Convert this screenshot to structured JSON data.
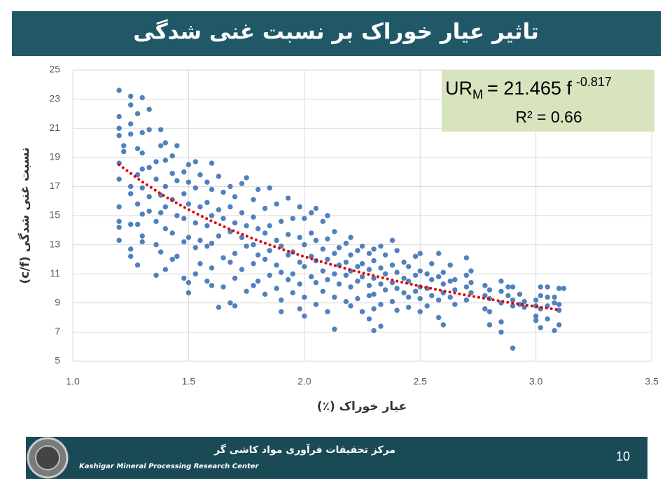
{
  "chart_data": {
    "type": "scatter",
    "title": "تاثیر عیار خوراک بر نسبت غنی شدگی",
    "x_label": "عیار خوراک (٪)",
    "y_label": "نسبت غنی شدگی (c/f)",
    "equation": {
      "lhs": "UR",
      "sub": "M",
      "rhs": "= 21.465 f",
      "sup": "-0.817",
      "r2": "R² = 0.66"
    },
    "xlim": [
      1,
      3.5
    ],
    "xticks": [
      {
        "value": 1,
        "label": "1.0"
      },
      {
        "value": 1.5,
        "label": "1.5"
      },
      {
        "value": 2,
        "label": "2.0"
      },
      {
        "value": 2.5,
        "label": "2.5"
      },
      {
        "value": 3,
        "label": "3.0"
      },
      {
        "value": 3.5,
        "label": "3.5"
      }
    ],
    "ylim": [
      5,
      25
    ],
    "yticks": [
      5,
      7,
      9,
      11,
      13,
      15,
      17,
      19,
      21,
      23,
      25
    ],
    "grid": true,
    "series": [
      {
        "color": "#4f81bd",
        "x": [
          1.2,
          1.2,
          1.2,
          1.2,
          1.2,
          1.2,
          1.2,
          1.2,
          1.2,
          1.2,
          1.22,
          1.22,
          1.25,
          1.25,
          1.25,
          1.25,
          1.25,
          1.25,
          1.25,
          1.25,
          1.25,
          1.28,
          1.28,
          1.28,
          1.28,
          1.28,
          1.28,
          1.3,
          1.3,
          1.3,
          1.3,
          1.3,
          1.3,
          1.3,
          1.3,
          1.33,
          1.33,
          1.33,
          1.33,
          1.33,
          1.36,
          1.36,
          1.36,
          1.36,
          1.36,
          1.38,
          1.38,
          1.38,
          1.38,
          1.38,
          1.4,
          1.4,
          1.4,
          1.4,
          1.4,
          1.4,
          1.43,
          1.43,
          1.43,
          1.43,
          1.43,
          1.45,
          1.45,
          1.45,
          1.45,
          1.48,
          1.48,
          1.48,
          1.48,
          1.48,
          1.5,
          1.5,
          1.5,
          1.5,
          1.5,
          1.5,
          1.53,
          1.53,
          1.53,
          1.53,
          1.53,
          1.55,
          1.55,
          1.55,
          1.55,
          1.58,
          1.58,
          1.58,
          1.58,
          1.58,
          1.6,
          1.6,
          1.6,
          1.6,
          1.6,
          1.6,
          1.63,
          1.63,
          1.63,
          1.63,
          1.65,
          1.65,
          1.65,
          1.65,
          1.68,
          1.68,
          1.68,
          1.68,
          1.68,
          1.7,
          1.7,
          1.7,
          1.7,
          1.7,
          1.73,
          1.73,
          1.73,
          1.73,
          1.75,
          1.75,
          1.75,
          1.75,
          1.78,
          1.78,
          1.78,
          1.78,
          1.78,
          1.8,
          1.8,
          1.8,
          1.8,
          1.83,
          1.83,
          1.83,
          1.83,
          1.85,
          1.85,
          1.85,
          1.85,
          1.88,
          1.88,
          1.88,
          1.88,
          1.9,
          1.9,
          1.9,
          1.9,
          1.9,
          1.93,
          1.93,
          1.93,
          1.93,
          1.95,
          1.95,
          1.95,
          1.95,
          1.98,
          1.98,
          1.98,
          1.98,
          1.98,
          2,
          2,
          2,
          2,
          2,
          2.03,
          2.03,
          2.03,
          2.03,
          2.05,
          2.05,
          2.05,
          2.05,
          2.05,
          2.08,
          2.08,
          2.08,
          2.08,
          2.1,
          2.1,
          2.1,
          2.1,
          2.1,
          2.13,
          2.13,
          2.13,
          2.13,
          2.13,
          2.15,
          2.15,
          2.15,
          2.18,
          2.18,
          2.18,
          2.18,
          2.2,
          2.2,
          2.2,
          2.2,
          2.2,
          2.23,
          2.23,
          2.23,
          2.23,
          2.25,
          2.25,
          2.25,
          2.25,
          2.28,
          2.28,
          2.28,
          2.28,
          2.28,
          2.3,
          2.3,
          2.3,
          2.3,
          2.3,
          2.3,
          2.33,
          2.33,
          2.33,
          2.33,
          2.33,
          2.35,
          2.35,
          2.35,
          2.38,
          2.38,
          2.38,
          2.38,
          2.4,
          2.4,
          2.4,
          2.4,
          2.43,
          2.43,
          2.43,
          2.45,
          2.45,
          2.45,
          2.45,
          2.48,
          2.48,
          2.48,
          2.5,
          2.5,
          2.5,
          2.5,
          2.5,
          2.53,
          2.53,
          2.53,
          2.55,
          2.55,
          2.55,
          2.58,
          2.58,
          2.58,
          2.58,
          2.6,
          2.6,
          2.6,
          2.6,
          2.63,
          2.63,
          2.63,
          2.65,
          2.65,
          2.65,
          2.7,
          2.7,
          2.7,
          2.7,
          2.72,
          2.72,
          2.72,
          2.78,
          2.78,
          2.78,
          2.8,
          2.8,
          2.8,
          2.8,
          2.85,
          2.85,
          2.85,
          2.85,
          2.85,
          2.88,
          2.88,
          2.9,
          2.9,
          2.9,
          2.9,
          2.93,
          2.93,
          2.95,
          2.95,
          3,
          3,
          3,
          3,
          3.02,
          3.02,
          3.02,
          3.02,
          3.05,
          3.05,
          3.05,
          3.05,
          3.08,
          3.08,
          3.08,
          3.1,
          3.1,
          3.1,
          3.1,
          3.12
        ],
        "values": [
          23.6,
          21.8,
          21,
          20.5,
          18.6,
          17.5,
          15.6,
          14.6,
          13.3,
          14.2,
          19.8,
          19.4,
          23.2,
          22.6,
          21.3,
          20.6,
          17,
          16.5,
          14.4,
          12.7,
          12.2,
          22,
          19.6,
          17.8,
          15.8,
          14.4,
          11.6,
          23.1,
          20.7,
          19.3,
          18.2,
          16.9,
          15.1,
          13.6,
          13.2,
          22.3,
          20.9,
          18.3,
          16.3,
          15.3,
          18.7,
          17.5,
          14.6,
          13,
          10.9,
          20.9,
          19.8,
          16.4,
          15.2,
          12.5,
          20,
          18.8,
          17,
          15.6,
          14.1,
          11.3,
          19.1,
          17.9,
          16.1,
          13.8,
          12,
          19.8,
          17.4,
          15,
          12.2,
          18,
          16.5,
          14.8,
          13.2,
          10.7,
          18.5,
          17.3,
          15.8,
          13.5,
          10.4,
          9.7,
          18.7,
          16.9,
          14.5,
          12.8,
          11,
          17.8,
          15.6,
          13.3,
          11.7,
          17.3,
          15.9,
          14.3,
          12.9,
          10.5,
          18.6,
          16.8,
          15,
          13.1,
          11.4,
          10.2,
          17.7,
          15.4,
          13.6,
          8.7,
          16.6,
          14.8,
          12.1,
          10.1,
          17,
          15.6,
          13.9,
          11.8,
          9,
          16.3,
          14.5,
          12.4,
          10.7,
          8.8,
          17.2,
          15.2,
          13.5,
          11.3,
          17.6,
          14.3,
          12.9,
          9.8,
          16.1,
          14.9,
          13,
          11.7,
          10.2,
          16.8,
          14.1,
          12.3,
          10.5,
          15.5,
          13.8,
          12,
          9.6,
          16.9,
          14.3,
          12.6,
          10.9,
          15.8,
          13.3,
          11.6,
          10,
          14.6,
          12.9,
          11.1,
          9.2,
          8.4,
          16.2,
          13.7,
          12.3,
          10.6,
          14.8,
          12.5,
          11,
          9.7,
          15.6,
          13.5,
          11.8,
          10.3,
          8.6,
          14.8,
          13,
          11.5,
          9.4,
          8.1,
          15.2,
          13.8,
          12.2,
          10.8,
          15.5,
          13.3,
          11.9,
          10.4,
          8.9,
          14.6,
          12.7,
          11.2,
          9.8,
          15,
          13.4,
          12,
          10.6,
          8.4,
          13.9,
          12.4,
          11,
          9.4,
          7.2,
          12.8,
          11.6,
          10.3,
          13.1,
          11.8,
          10.9,
          9.1,
          13.5,
          12.3,
          11.2,
          10.1,
          8.8,
          12.6,
          11.5,
          10.5,
          9.3,
          12.9,
          11.7,
          10.8,
          8.4,
          12.4,
          11.3,
          10.2,
          9.5,
          7.9,
          12.7,
          11.9,
          10.7,
          9.6,
          8.6,
          7.1,
          12.9,
          11.4,
          10.3,
          8.9,
          7.4,
          12.3,
          11,
          9.9,
          13.3,
          11.6,
          10.4,
          9.1,
          12.6,
          11.1,
          10,
          8.5,
          11.8,
          10.7,
          9.7,
          11.5,
          10.5,
          9.4,
          8.7,
          12.2,
          10.9,
          9.8,
          12.4,
          11.2,
          10.1,
          9.3,
          8.4,
          11,
          10,
          8.8,
          11.7,
          10.6,
          9.5,
          12.4,
          10.8,
          9.2,
          8,
          11.1,
          10.3,
          9.7,
          7.5,
          11.6,
          10.5,
          9.4,
          10.6,
          9.9,
          8.9,
          12.1,
          10.9,
          10.1,
          9.2,
          11.2,
          10.4,
          9.7,
          10.2,
          9.5,
          8.6,
          9.9,
          9.3,
          8.4,
          7.5,
          10.5,
          9.8,
          9,
          7.7,
          7,
          10.1,
          9.5,
          10.1,
          9.2,
          8.8,
          5.9,
          9.6,
          8.9,
          9.1,
          8.7,
          9.2,
          8.8,
          8.1,
          7.8,
          10.1,
          9.5,
          8.6,
          7.3,
          10.1,
          9.4,
          8.8,
          7.9,
          9.4,
          9,
          7.1,
          10,
          8.9,
          8.5,
          7.5,
          10
        ]
      },
      {
        "color": "#e00000",
        "x": [
          1.2,
          1.3,
          1.4,
          1.5,
          1.6,
          1.7,
          1.8,
          1.9,
          2,
          2.1,
          2.2,
          2.3,
          2.4,
          2.5,
          2.6,
          2.7,
          2.8,
          2.9,
          3,
          3.1
        ],
        "values": [
          18.49,
          17.32,
          16.3,
          15.41,
          14.62,
          13.91,
          13.28,
          12.71,
          12.18,
          11.71,
          11.27,
          10.87,
          10.5,
          10.15,
          9.83,
          9.53,
          9.26,
          8.99,
          8.75,
          8.52
        ]
      }
    ]
  },
  "footer": {
    "center_fa": "مرکز تحقیقات فرآوری مواد کاشی گر",
    "center_en": "Kashigar Mineral Processing Research Center",
    "page": "10"
  }
}
